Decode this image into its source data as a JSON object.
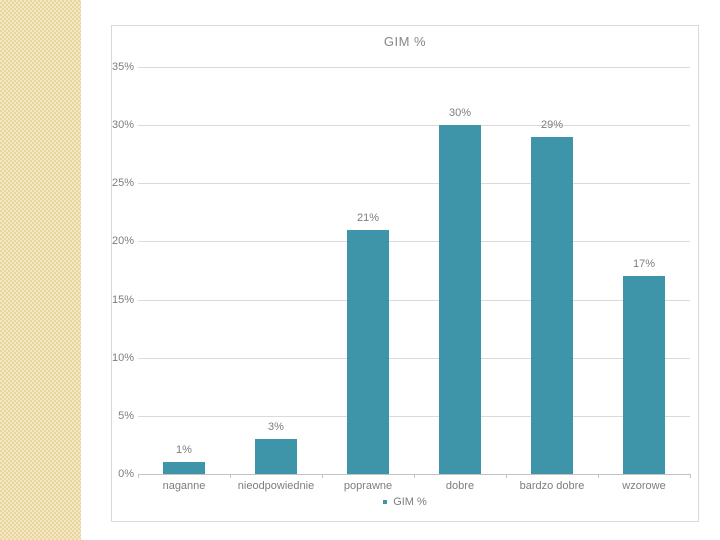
{
  "slide": {
    "background": "#ffffff",
    "texture": {
      "base_color": "#e9d59e",
      "alt_color": "#f2e6c3"
    }
  },
  "chart": {
    "title": "GIM %",
    "legend": {
      "label": "GIM %",
      "marker_color": "#3e94a8"
    },
    "colors": {
      "bar": "#3e94a8",
      "gridline": "#dadada",
      "axis_line": "#c3c3c3",
      "text": "#7d7d7d",
      "panel_border": "#d9d9d9"
    }
  },
  "chart_data": {
    "type": "bar",
    "title": "GIM %",
    "categories": [
      "naganne",
      "nieodpowiednie",
      "poprawne",
      "dobre",
      "bardzo dobre",
      "wzorowe"
    ],
    "values": [
      1,
      3,
      21,
      30,
      29,
      17
    ],
    "data_labels": [
      "1%",
      "3%",
      "21%",
      "30%",
      "29%",
      "17%"
    ],
    "y_tick_labels": [
      "0%",
      "5%",
      "10%",
      "15%",
      "20%",
      "25%",
      "30%",
      "35%"
    ],
    "y_tick_values": [
      0,
      5,
      10,
      15,
      20,
      25,
      30,
      35
    ],
    "ylim": [
      0,
      35
    ],
    "xlabel": "",
    "ylabel": "",
    "grid": true,
    "legend_entries": [
      "GIM %"
    ],
    "legend_position": "bottom"
  }
}
